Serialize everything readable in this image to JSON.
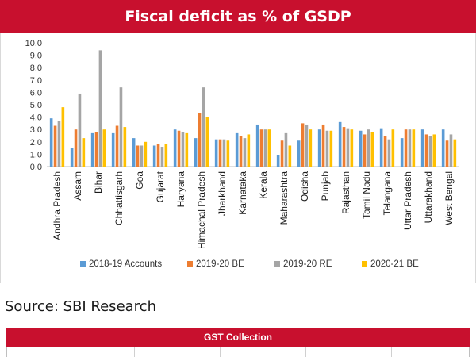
{
  "title": "Fiscal deficit as % of GSDP",
  "source": "Source: SBI Research",
  "gst_title": "GST Collection",
  "chart_data": {
    "type": "bar",
    "title": "Fiscal deficit as % of GSDP",
    "xlabel": "",
    "ylabel": "",
    "ylim": [
      0,
      10
    ],
    "yticks": [
      "0.0",
      "1.0",
      "2.0",
      "3.0",
      "4.0",
      "5.0",
      "6.0",
      "7.0",
      "8.0",
      "9.0",
      "10.0"
    ],
    "grid": false,
    "legend_position": "bottom",
    "categories": [
      "Andhra Pradesh",
      "Assam",
      "Bihar",
      "Chhattisgarh",
      "Goa",
      "Gujarat",
      "Haryana",
      "Himachal Pradesh",
      "Jharkhand",
      "Karnataka",
      "Kerala",
      "Maharashtra",
      "Odisha",
      "Punjab",
      "Rajasthan",
      "Tamil Nadu",
      "Telangana",
      "Uttar Pradesh",
      "Uttarakhand",
      "West Bengal"
    ],
    "series": [
      {
        "name": "2018-19 Accounts",
        "color": "#5b9bd5",
        "values": [
          3.9,
          1.5,
          2.7,
          2.7,
          2.3,
          1.7,
          3.0,
          2.3,
          2.2,
          2.7,
          3.4,
          0.9,
          2.1,
          3.0,
          3.6,
          2.9,
          3.1,
          2.3,
          3.0,
          3.0
        ]
      },
      {
        "name": "2019-20 BE",
        "color": "#ed7d31",
        "values": [
          3.3,
          3.0,
          2.8,
          3.3,
          1.7,
          1.8,
          2.9,
          4.3,
          2.2,
          2.5,
          3.0,
          2.1,
          3.5,
          3.4,
          3.2,
          2.6,
          2.5,
          3.0,
          2.6,
          2.1
        ]
      },
      {
        "name": "2019-20 RE",
        "color": "#a5a5a5",
        "values": [
          3.7,
          5.9,
          9.4,
          6.4,
          1.7,
          1.6,
          2.8,
          6.4,
          2.2,
          2.3,
          3.0,
          2.7,
          3.4,
          2.9,
          3.1,
          3.0,
          2.2,
          3.0,
          2.5,
          2.6
        ]
      },
      {
        "name": "2020-21 BE",
        "color": "#ffc000",
        "values": [
          4.8,
          2.3,
          3.0,
          3.2,
          2.0,
          1.8,
          2.7,
          4.0,
          2.1,
          2.6,
          3.0,
          1.7,
          3.0,
          2.9,
          3.0,
          2.8,
          3.0,
          3.0,
          2.6,
          2.2
        ]
      }
    ]
  }
}
